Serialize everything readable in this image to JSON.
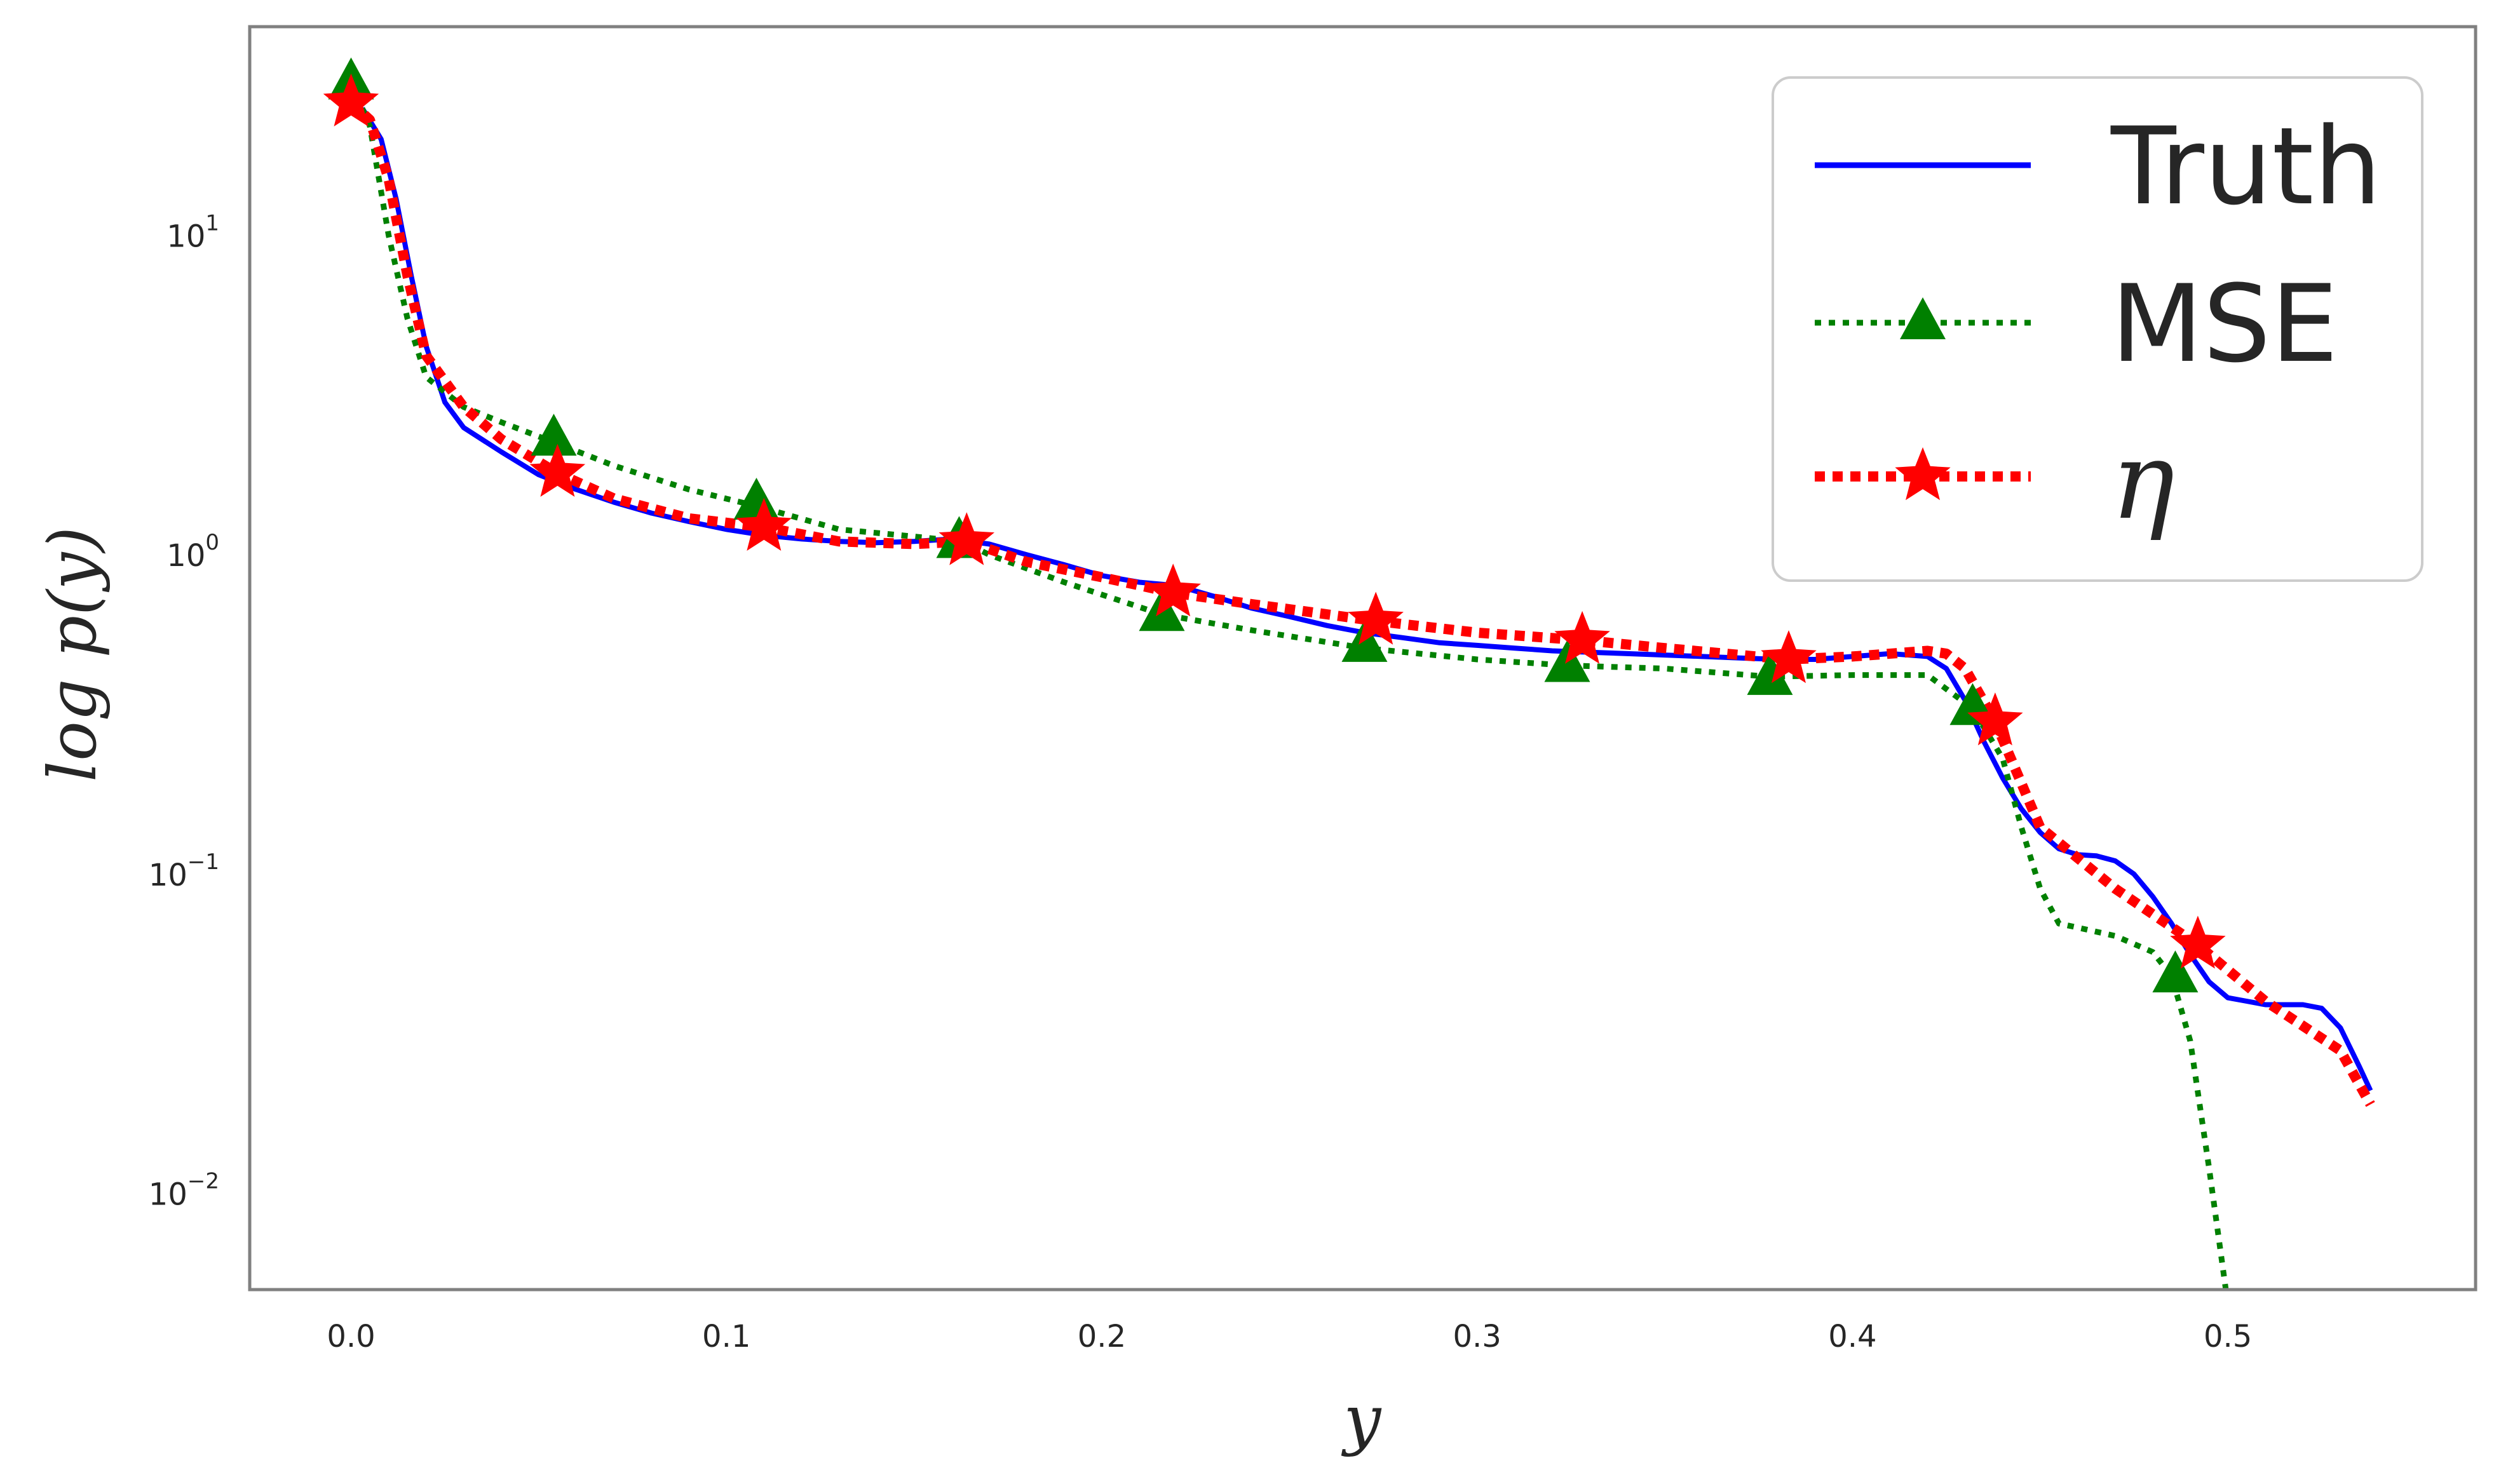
{
  "chart_data": {
    "type": "line",
    "xlabel": "y",
    "ylabel": "log p(y)",
    "xlim": [
      -0.027,
      0.566
    ],
    "ylim": [
      0.005,
      45
    ],
    "yscale": "log",
    "grid": false,
    "legend_position": "top-right",
    "x_ticks": [
      {
        "value": 0.0,
        "label": "0.0"
      },
      {
        "value": 0.1,
        "label": "0.1"
      },
      {
        "value": 0.2,
        "label": "0.2"
      },
      {
        "value": 0.3,
        "label": "0.3"
      },
      {
        "value": 0.4,
        "label": "0.4"
      },
      {
        "value": 0.5,
        "label": "0.5"
      }
    ],
    "y_ticks": [
      {
        "value": 10,
        "base": "10",
        "exp": "1"
      },
      {
        "value": 1,
        "base": "10",
        "exp": "0"
      },
      {
        "value": 0.1,
        "base": "10",
        "exp": "−1"
      },
      {
        "value": 0.01,
        "base": "10",
        "exp": "−2"
      }
    ],
    "series": [
      {
        "name": "Truth",
        "color": "#0000ff",
        "linestyle": "solid",
        "marker": "none",
        "x": [
          0.003,
          0.008,
          0.012,
          0.016,
          0.02,
          0.025,
          0.03,
          0.04,
          0.05,
          0.06,
          0.07,
          0.08,
          0.09,
          0.1,
          0.11,
          0.12,
          0.13,
          0.14,
          0.15,
          0.16,
          0.17,
          0.18,
          0.19,
          0.2,
          0.21,
          0.22,
          0.23,
          0.24,
          0.25,
          0.26,
          0.27,
          0.28,
          0.29,
          0.3,
          0.31,
          0.32,
          0.33,
          0.34,
          0.35,
          0.36,
          0.37,
          0.38,
          0.39,
          0.4,
          0.41,
          0.42,
          0.425,
          0.43,
          0.435,
          0.44,
          0.445,
          0.45,
          0.455,
          0.46,
          0.465,
          0.47,
          0.475,
          0.48,
          0.485,
          0.49,
          0.495,
          0.5,
          0.505,
          0.51,
          0.515,
          0.52,
          0.525,
          0.53,
          0.535,
          0.538
        ],
        "y": [
          25,
          20,
          13,
          7.5,
          4.5,
          3.0,
          2.5,
          2.1,
          1.78,
          1.6,
          1.46,
          1.35,
          1.27,
          1.2,
          1.15,
          1.12,
          1.1,
          1.09,
          1.1,
          1.12,
          1.08,
          1.0,
          0.93,
          0.86,
          0.82,
          0.8,
          0.74,
          0.68,
          0.64,
          0.6,
          0.57,
          0.55,
          0.53,
          0.52,
          0.51,
          0.5,
          0.495,
          0.49,
          0.485,
          0.48,
          0.475,
          0.47,
          0.47,
          0.48,
          0.49,
          0.48,
          0.44,
          0.35,
          0.26,
          0.2,
          0.16,
          0.135,
          0.12,
          0.115,
          0.114,
          0.11,
          0.1,
          0.085,
          0.07,
          0.056,
          0.046,
          0.041,
          0.04,
          0.039,
          0.039,
          0.039,
          0.038,
          0.033,
          0.025,
          0.021
        ]
      },
      {
        "name": "MSE",
        "color": "#008000",
        "linestyle": "dotted",
        "marker": "triangle",
        "x": [
          0.0,
          0.005,
          0.01,
          0.015,
          0.02,
          0.03,
          0.04,
          0.054,
          0.07,
          0.09,
          0.108,
          0.13,
          0.15,
          0.163,
          0.17,
          0.19,
          0.216,
          0.24,
          0.27,
          0.3,
          0.324,
          0.35,
          0.378,
          0.4,
          0.42,
          0.432,
          0.44,
          0.445,
          0.45,
          0.455,
          0.46,
          0.47,
          0.48,
          0.485,
          0.49,
          0.495,
          0.5
        ],
        "y": [
          30,
          22,
          10,
          5.5,
          3.6,
          2.9,
          2.6,
          2.25,
          1.9,
          1.6,
          1.42,
          1.2,
          1.14,
          1.1,
          1.0,
          0.82,
          0.65,
          0.58,
          0.51,
          0.47,
          0.45,
          0.44,
          0.415,
          0.42,
          0.42,
          0.33,
          0.23,
          0.14,
          0.09,
          0.07,
          0.068,
          0.064,
          0.057,
          0.048,
          0.03,
          0.012,
          0.0045
        ],
        "marker_x": [
          0.0,
          0.054,
          0.108,
          0.162,
          0.216,
          0.27,
          0.324,
          0.378,
          0.432,
          0.486
        ],
        "marker_y": [
          30,
          2.3,
          1.45,
          1.1,
          0.65,
          0.52,
          0.45,
          0.41,
          0.33,
          0.048
        ]
      },
      {
        "name": "η",
        "color": "#ff0000",
        "linestyle": "dotted",
        "marker": "star",
        "x": [
          0.0,
          0.005,
          0.01,
          0.015,
          0.02,
          0.03,
          0.04,
          0.055,
          0.07,
          0.09,
          0.11,
          0.13,
          0.15,
          0.164,
          0.18,
          0.2,
          0.219,
          0.24,
          0.273,
          0.3,
          0.328,
          0.35,
          0.383,
          0.4,
          0.42,
          0.425,
          0.43,
          0.438,
          0.45,
          0.47,
          0.492,
          0.51,
          0.53,
          0.538
        ],
        "y": [
          26,
          23,
          15,
          7.5,
          4.2,
          2.9,
          2.3,
          1.8,
          1.5,
          1.3,
          1.22,
          1.1,
          1.08,
          1.1,
          0.95,
          0.85,
          0.76,
          0.7,
          0.62,
          0.57,
          0.54,
          0.51,
          0.47,
          0.48,
          0.5,
          0.49,
          0.44,
          0.3,
          0.14,
          0.09,
          0.06,
          0.04,
          0.028,
          0.019
        ],
        "marker_x": [
          0.0,
          0.055,
          0.11,
          0.164,
          0.219,
          0.273,
          0.328,
          0.383,
          0.438,
          0.492
        ],
        "marker_y": [
          26,
          1.8,
          1.22,
          1.1,
          0.76,
          0.62,
          0.54,
          0.47,
          0.3,
          0.06
        ]
      }
    ],
    "legend": {
      "entries": [
        "Truth",
        "MSE",
        "η"
      ]
    }
  }
}
